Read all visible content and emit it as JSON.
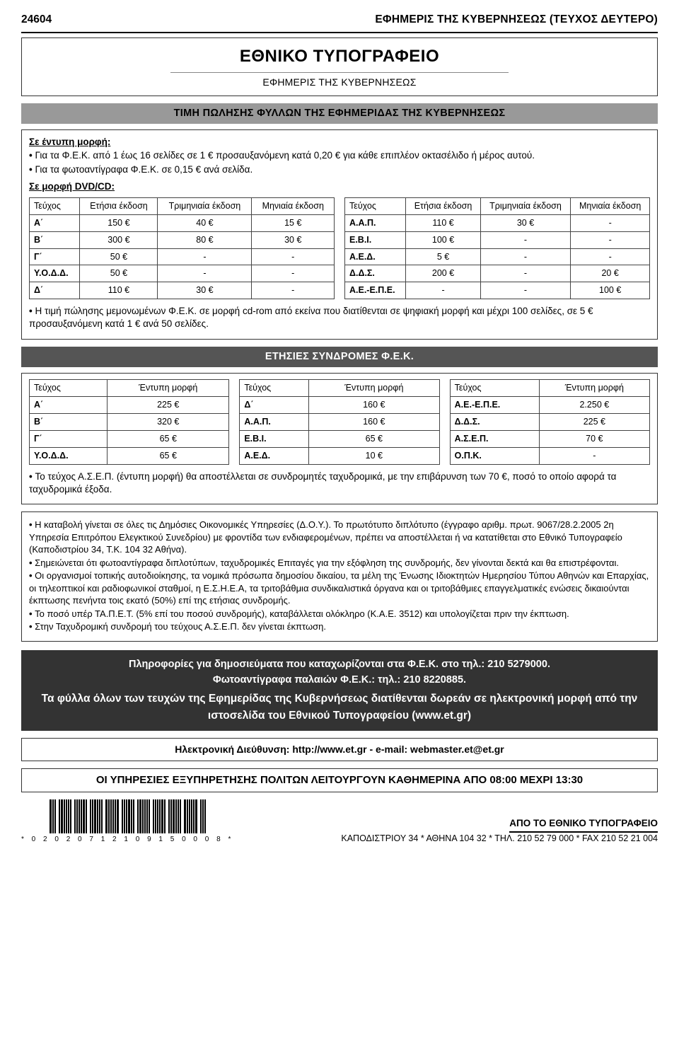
{
  "header": {
    "page_no": "24604",
    "journal": "ΕΦΗΜΕΡΙΣ ΤΗΣ ΚΥΒΕΡΝΗΣΕΩΣ (ΤΕΥΧΟΣ ΔΕΥΤΕΡΟ)"
  },
  "title": {
    "line1": "ΕΘΝΙΚΟ ΤΥΠΟΓΡΑΦΕΙΟ",
    "line2": "ΕΦΗΜΕΡΙΣ ΤΗΣ ΚΥΒΕΡΝΗΣΕΩΣ"
  },
  "band1": "ΤΙΜΗ ΠΩΛΗΣΗΣ ΦΥΛΛΩΝ ΤΗΣ ΕΦΗΜΕΡΙΔΑΣ ΤΗΣ ΚΥΒΕΡΝΗΣΕΩΣ",
  "print_form": {
    "heading": "Σε έντυπη μορφή:",
    "b1": "Για τα Φ.Ε.Κ. από 1 έως 16 σελίδες σε 1 € προσαυξανόμενη κατά 0,20 € για κάθε επιπλέον οκτασέλιδο ή μέρος αυτού.",
    "b2": "Για τα φωτοαντίγραφα Φ.Ε.Κ. σε 0,15 € ανά σελίδα."
  },
  "dvd": {
    "heading": "Σε μορφή DVD/CD:",
    "cols": [
      "Τεύχος",
      "Ετήσια έκδοση",
      "Τριμηνιαία έκδοση",
      "Μηνιαία έκδοση"
    ],
    "left": [
      [
        "Α΄",
        "150 €",
        "40 €",
        "15 €"
      ],
      [
        "Β΄",
        "300 €",
        "80 €",
        "30 €"
      ],
      [
        "Γ΄",
        "50 €",
        "-",
        "-"
      ],
      [
        "Υ.Ο.Δ.Δ.",
        "50 €",
        "-",
        "-"
      ],
      [
        "Δ΄",
        "110 €",
        "30 €",
        "-"
      ]
    ],
    "right": [
      [
        "Α.Α.Π.",
        "110 €",
        "30 €",
        "-"
      ],
      [
        "Ε.Β.Ι.",
        "100 €",
        "-",
        "-"
      ],
      [
        "Α.Ε.Δ.",
        "5 €",
        "-",
        "-"
      ],
      [
        "Δ.Δ.Σ.",
        "200 €",
        "-",
        "20 €"
      ],
      [
        "Α.Ε.-Ε.Π.Ε.",
        "-",
        "-",
        "100 €"
      ]
    ],
    "note": "Η τιμή πώλησης μεμονωμένων Φ.Ε.Κ. σε μορφή cd-rom από εκείνα που διατίθενται σε ψηφιακή μορφή και μέχρι 100 σελίδες, σε 5 € προσαυξανόμενη κατά 1 € ανά 50 σελίδες."
  },
  "band2": "ΕΤΗΣΙΕΣ ΣΥΝΔΡΟΜΕΣ Φ.Ε.Κ.",
  "subs": {
    "cols": [
      "Τεύχος",
      "Έντυπη μορφή"
    ],
    "t1": [
      [
        "Α΄",
        "225 €"
      ],
      [
        "Β΄",
        "320 €"
      ],
      [
        "Γ΄",
        "65 €"
      ],
      [
        "Υ.Ο.Δ.Δ.",
        "65 €"
      ]
    ],
    "t2": [
      [
        "Δ΄",
        "160 €"
      ],
      [
        "Α.Α.Π.",
        "160 €"
      ],
      [
        "Ε.Β.Ι.",
        "65 €"
      ],
      [
        "Α.Ε.Δ.",
        "10 €"
      ]
    ],
    "t3": [
      [
        "Α.Ε.-Ε.Π.Ε.",
        "2.250 €"
      ],
      [
        "Δ.Δ.Σ.",
        "225 €"
      ],
      [
        "Α.Σ.Ε.Π.",
        "70 €"
      ],
      [
        "Ο.Π.Κ.",
        "-"
      ]
    ],
    "note": "Το τεύχος Α.Σ.Ε.Π. (έντυπη μορφή) θα αποστέλλεται σε συνδρομητές ταχυδρομικά, με την επιβάρυνση των 70 €, ποσό το οποίο αφορά τα ταχυδρομικά έξοδα."
  },
  "rules": {
    "r1": "Η καταβολή γίνεται σε όλες τις Δημόσιες Οικονομικές Υπηρεσίες (Δ.Ο.Υ.). Το πρωτότυπο διπλότυπο (έγγραφο αριθμ. πρωτ. 9067/28.2.2005 2η Υπηρεσία Επιτρόπου Ελεγκτικού Συνεδρίου) με φροντίδα των ενδιαφερομένων, πρέπει να αποστέλλεται ή να κατατίθεται στο Εθνικό Τυπογραφείο (Καποδιστρίου 34, Τ.Κ. 104 32 Αθήνα).",
    "r2": "Σημειώνεται ότι φωτοαντίγραφα διπλοτύπων, ταχυδρομικές Επιταγές για την εξόφληση της συνδρομής, δεν γίνονται δεκτά και θα επιστρέφονται.",
    "r3": "Οι οργανισμοί τοπικής αυτοδιοίκησης, τα νομικά πρόσωπα δημοσίου δικαίου, τα μέλη της Ένωσης Ιδιοκτητών Ημερησίου Τύπου Αθηνών και Επαρχίας, οι τηλεοπτικοί και ραδιοφωνικοί σταθμοί, η Ε.Σ.Η.Ε.Α, τα τριτοβάθμια συνδικαλιστικά όργανα και οι τριτοβάθμιες επαγγελματικές ενώσεις δικαιούνται έκπτωσης πενήντα τοις εκατό (50%) επί της ετήσιας συνδρομής.",
    "r4": "Το ποσό υπέρ ΤΑ.Π.Ε.Τ. (5% επί του ποσού συνδρομής), καταβάλλεται ολόκληρο (Κ.Α.Ε. 3512) και υπολογίζεται πριν την έκπτωση.",
    "r5": "Στην Ταχυδρομική συνδρομή του τεύχους Α.Σ.Ε.Π. δεν γίνεται έκπτωση."
  },
  "dark": {
    "l1": "Πληροφορίες  για δημοσιεύματα που καταχωρίζονται στα Φ.Ε.Κ.  στο τηλ.: 210 5279000.",
    "l2": "Φωτοαντίγραφα παλαιών Φ.Ε.Κ.: τηλ.: 210 8220885.",
    "l3": "Τα φύλλα όλων των τευχών της Εφημερίδας της Κυβερνήσεως διατίθενται δωρεάν σε ηλεκτρονική μορφή από την ιστοσελίδα του Εθνικού Τυπογραφείου (www.et.gr)"
  },
  "eaddr": "Ηλεκτρονική Διεύθυνση: http://www.et.gr - e-mail: webmaster.et@et.gr",
  "hours": "ΟΙ ΥΠΗΡΕΣΙΕΣ ΕΞΥΠΗΡΕΤΗΣΗΣ ΠΟΛΙΤΩΝ ΛΕΙΤΟΥΡΓΟΥΝ ΚΑΘΗΜΕΡΙΝΑ ΑΠΟ 08:00 ΜΕΧΡΙ 13:30",
  "barcode_num": "* 0 2 0 2 0 7 1 2 1 0 9 1 5 0 0 0 8 *",
  "from": {
    "title": "ΑΠΟ ΤΟ ΕΘΝΙΚΟ ΤΥΠΟΓΡΑΦΕΙΟ",
    "addr": "ΚΑΠΟΔΙΣΤΡΙΟΥ 34 * ΑΘΗΝΑ 104 32 * ΤΗΛ. 210 52 79 000 * FAX 210 52 21 004"
  }
}
